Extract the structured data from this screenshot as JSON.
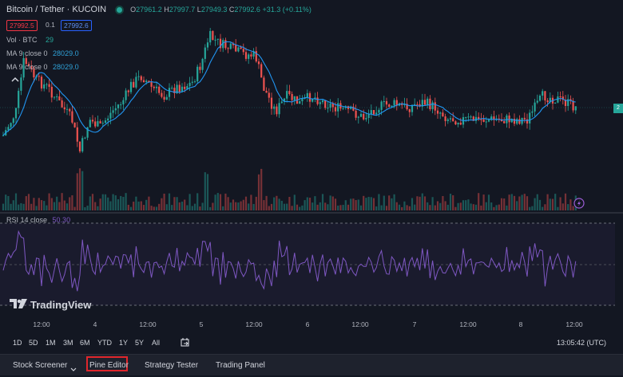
{
  "header": {
    "symbol_title": "Bitcoin / Tether · KUCOIN",
    "ohlc": {
      "o_label": "O",
      "o": "27961.2",
      "h_label": "H",
      "h": "27997.7",
      "l_label": "L",
      "l": "27949.3",
      "c_label": "C",
      "c": "27992.6",
      "change": "+31.3 (+0.11%)"
    },
    "sell_price": "27992.5",
    "spread": "0.1",
    "buy_price": "27992.6"
  },
  "indicators": {
    "volume": {
      "label": "Vol · BTC",
      "value": "29"
    },
    "ma1": {
      "label": "MA 9 close 0",
      "value": "28029.0"
    },
    "ma2": {
      "label": "MA 9 close 0",
      "value": "28029.0"
    },
    "rsi": {
      "label": "RSI 14 close",
      "value": "50.30"
    }
  },
  "branding": {
    "logo_text": "TradingView"
  },
  "time_axis": {
    "ticks": [
      "12:00",
      "4",
      "12:00",
      "5",
      "12:00",
      "6",
      "12:00",
      "7",
      "12:00",
      "8",
      "12:00"
    ]
  },
  "range_buttons": [
    "1D",
    "5D",
    "1M",
    "3M",
    "6M",
    "YTD",
    "1Y",
    "5Y",
    "All"
  ],
  "clock": "13:05:42 (UTC)",
  "bottom_tabs": {
    "stock_screener": "Stock Screener",
    "pine_editor": "Pine Editor",
    "strategy_tester": "Strategy Tester",
    "trading_panel": "Trading Panel"
  },
  "right_axis_tag": "2",
  "colors": {
    "up": "#26a69a",
    "down": "#ef5350",
    "ma": "#2196f3",
    "rsi": "#7e57c2",
    "background": "#131722",
    "highlight": "#e0262c"
  },
  "icons": [
    "collapse-chevron-icon",
    "lightning-icon",
    "tradingview-logo-icon",
    "compare-range-icon",
    "chevron-down-icon"
  ]
}
